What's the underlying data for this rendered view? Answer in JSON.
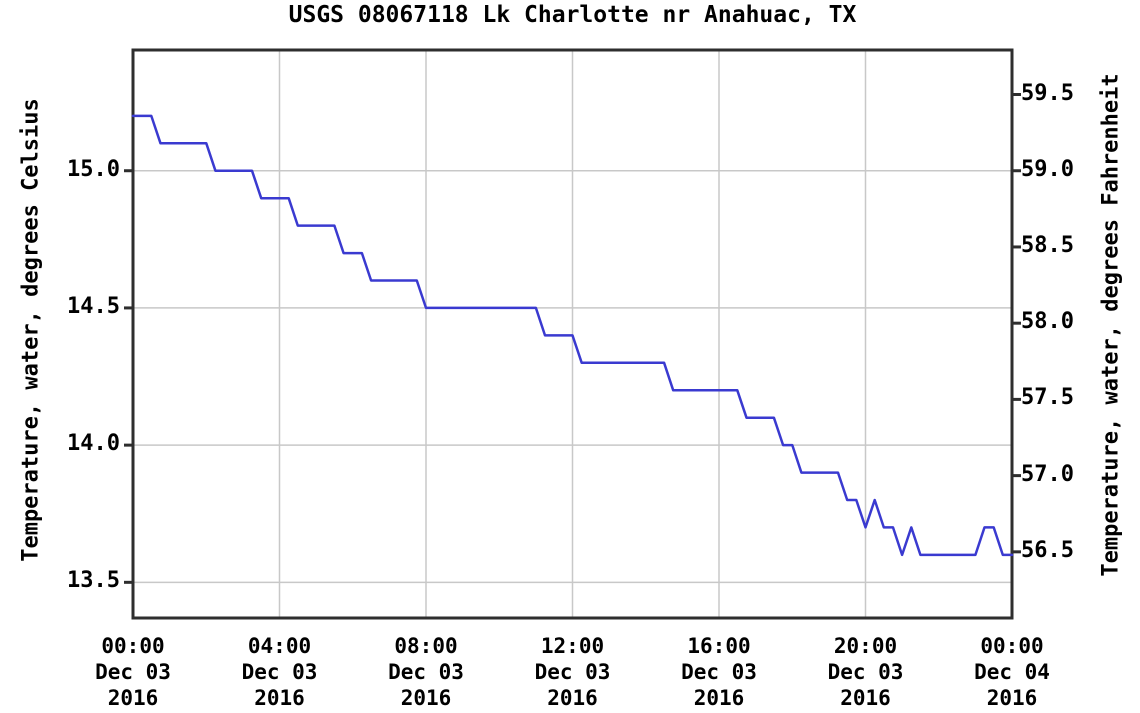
{
  "chart_data": {
    "type": "line",
    "title": "USGS 08067118 Lk Charlotte nr Anahuac, TX",
    "ylabel_left": "Temperature, water, degrees Celsius",
    "ylabel_right": "Temperature, water, degrees Fahrenheit",
    "ylim_celsius": [
      13.37,
      15.44
    ],
    "xlim_hours": [
      0,
      24
    ],
    "grid": true,
    "legend": "none",
    "y_ticks_celsius": [
      "15.0",
      "14.5",
      "14.0",
      "13.5"
    ],
    "y_ticks_fahrenheit": [
      "59.5",
      "59.0",
      "58.5",
      "58.0",
      "57.5",
      "57.0",
      "56.5"
    ],
    "x_ticks": [
      {
        "hour": 0,
        "time": "00:00",
        "date": "Dec 03",
        "year": "2016"
      },
      {
        "hour": 4,
        "time": "04:00",
        "date": "Dec 03",
        "year": "2016"
      },
      {
        "hour": 8,
        "time": "08:00",
        "date": "Dec 03",
        "year": "2016"
      },
      {
        "hour": 12,
        "time": "12:00",
        "date": "Dec 03",
        "year": "2016"
      },
      {
        "hour": 16,
        "time": "16:00",
        "date": "Dec 03",
        "year": "2016"
      },
      {
        "hour": 20,
        "time": "20:00",
        "date": "Dec 03",
        "year": "2016"
      },
      {
        "hour": 24,
        "time": "00:00",
        "date": "Dec 04",
        "year": "2016"
      }
    ],
    "colors": {
      "line": "#3a3ad0",
      "grid": "#c8c8c8",
      "frame": "#2e2e2e",
      "text": "#000000",
      "background": "#ffffff"
    },
    "series": [
      {
        "name": "Temperature, water, degrees Celsius",
        "start_hour": 0,
        "step_hours": 0.25,
        "values_celsius": [
          15.2,
          15.2,
          15.2,
          15.1,
          15.1,
          15.1,
          15.1,
          15.1,
          15.1,
          15.0,
          15.0,
          15.0,
          15.0,
          15.0,
          14.9,
          14.9,
          14.9,
          14.9,
          14.8,
          14.8,
          14.8,
          14.8,
          14.8,
          14.7,
          14.7,
          14.7,
          14.6,
          14.6,
          14.6,
          14.6,
          14.6,
          14.6,
          14.5,
          14.5,
          14.5,
          14.5,
          14.5,
          14.5,
          14.5,
          14.5,
          14.5,
          14.5,
          14.5,
          14.5,
          14.5,
          14.4,
          14.4,
          14.4,
          14.4,
          14.3,
          14.3,
          14.3,
          14.3,
          14.3,
          14.3,
          14.3,
          14.3,
          14.3,
          14.3,
          14.2,
          14.2,
          14.2,
          14.2,
          14.2,
          14.2,
          14.2,
          14.2,
          14.1,
          14.1,
          14.1,
          14.1,
          14.0,
          14.0,
          13.9,
          13.9,
          13.9,
          13.9,
          13.9,
          13.8,
          13.8,
          13.7,
          13.8,
          13.7,
          13.7,
          13.6,
          13.7,
          13.6,
          13.6,
          13.6,
          13.6,
          13.6,
          13.6,
          13.6,
          13.7,
          13.7,
          13.6,
          13.6
        ]
      }
    ]
  }
}
